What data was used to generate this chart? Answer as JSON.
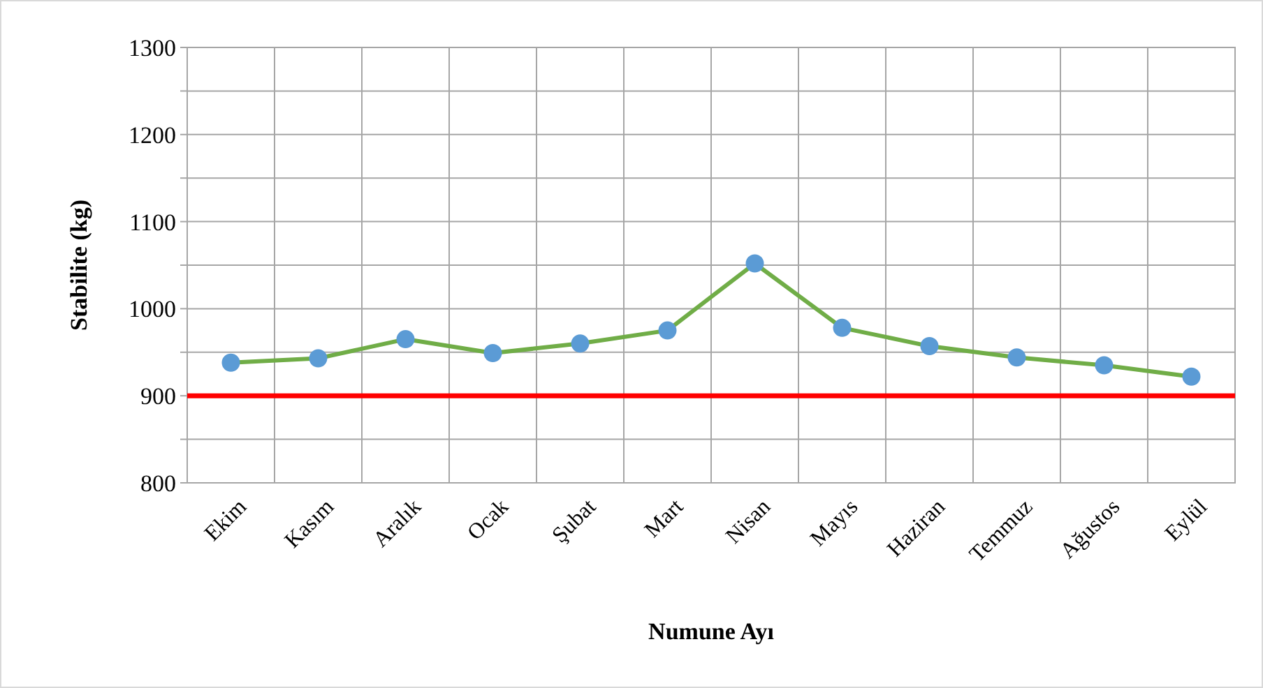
{
  "chart_data": {
    "type": "line",
    "xlabel": "Numune Ayı",
    "ylabel": "Stabilite (kg)",
    "categories": [
      "Ekim",
      "Kasım",
      "Aralık",
      "Ocak",
      "Şubat",
      "Mart",
      "Nisan",
      "Mayıs",
      "Haziran",
      "Temmuz",
      "Ağustos",
      "Eylül"
    ],
    "series": [
      {
        "color": "#70ad47",
        "values": [
          938,
          943,
          965,
          949,
          960,
          975,
          1052,
          978,
          957,
          944,
          935,
          922
        ]
      }
    ],
    "ylim": [
      800,
      1300
    ],
    "yticks": [
      800,
      {
        "value": 850,
        "label": null
      },
      900,
      {
        "value": 950,
        "label": null
      },
      1000,
      {
        "value": 1050,
        "label": null
      },
      1100,
      {
        "value": 1150,
        "label": null
      },
      1200,
      {
        "value": 1250,
        "label": null
      },
      1300
    ],
    "ref_lines": [
      {
        "axis": "y",
        "value": 900,
        "color": "#ff0000"
      }
    ],
    "grid": true,
    "marker": "circle",
    "line_style": "solid"
  }
}
